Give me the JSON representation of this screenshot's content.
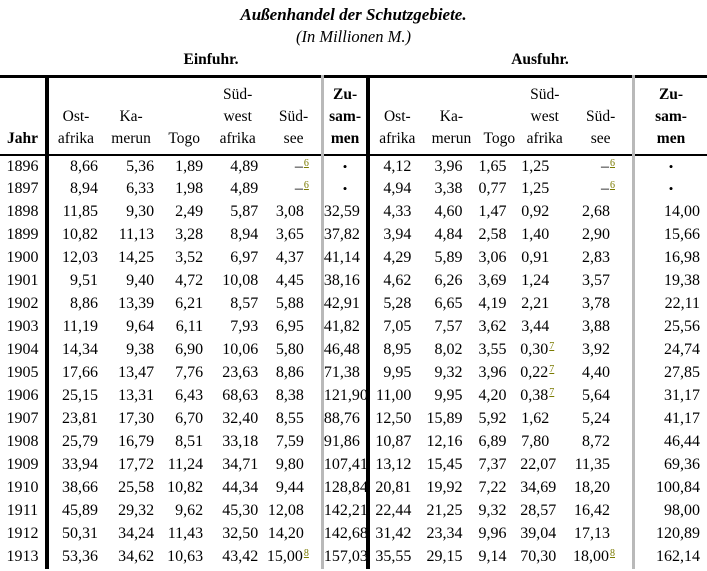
{
  "title": "Außenhandel der Schutzgebiete.",
  "subtitle": "(In Millionen M.)",
  "sections": {
    "einfuhr": "Einfuhr.",
    "ausfuhr": "Ausfuhr."
  },
  "colors": {
    "footnote_link": "#7a7a00",
    "gray_divider": "#b9b9b9",
    "rule_black": "#000000"
  },
  "table": {
    "jahr_label": "Jahr",
    "colonies": [
      {
        "lines": [
          "Ost-",
          "afrika"
        ]
      },
      {
        "lines": [
          "Ka-",
          "merun"
        ]
      },
      {
        "lines": [
          "Togo"
        ]
      },
      {
        "lines": [
          "Süd-",
          "west",
          "afrika"
        ]
      },
      {
        "lines": [
          "Süd-",
          "see"
        ]
      },
      {
        "lines": [
          "Zu-",
          "sam-",
          "men"
        ]
      }
    ],
    "cell_syntax_note": "value^n means footnote marker n rendered as superscript; – is a dash placeholder; • is a dot placeholder",
    "rows": [
      {
        "year": "1896",
        "einfuhr": [
          "8,66",
          "5,36",
          "1,89",
          "4,89",
          "–^6",
          "•"
        ],
        "ausfuhr": [
          "4,12",
          "3,96",
          "1,65",
          "1,25",
          "–^6",
          "•"
        ]
      },
      {
        "year": "1897",
        "einfuhr": [
          "8,94",
          "6,33",
          "1,98",
          "4,89",
          "–^6",
          "•"
        ],
        "ausfuhr": [
          "4,94",
          "3,38",
          "0,77",
          "1,25",
          "–^6",
          "•"
        ]
      },
      {
        "year": "1898",
        "einfuhr": [
          "11,85",
          "9,30",
          "2,49",
          "5,87",
          "3,08",
          "32,59"
        ],
        "ausfuhr": [
          "4,33",
          "4,60",
          "1,47",
          "0,92",
          "2,68",
          "14,00"
        ]
      },
      {
        "year": "1899",
        "einfuhr": [
          "10,82",
          "11,13",
          "3,28",
          "8,94",
          "3,65",
          "37,82"
        ],
        "ausfuhr": [
          "3,94",
          "4,84",
          "2,58",
          "1,40",
          "2,90",
          "15,66"
        ]
      },
      {
        "year": "1900",
        "einfuhr": [
          "12,03",
          "14,25",
          "3,52",
          "6,97",
          "4,37",
          "41,14"
        ],
        "ausfuhr": [
          "4,29",
          "5,89",
          "3,06",
          "0,91",
          "2,83",
          "16,98"
        ]
      },
      {
        "year": "1901",
        "einfuhr": [
          "9,51",
          "9,40",
          "4,72",
          "10,08",
          "4,45",
          "38,16"
        ],
        "ausfuhr": [
          "4,62",
          "6,26",
          "3,69",
          "1,24",
          "3,57",
          "19,38"
        ]
      },
      {
        "year": "1902",
        "einfuhr": [
          "8,86",
          "13,39",
          "6,21",
          "8,57",
          "5,88",
          "42,91"
        ],
        "ausfuhr": [
          "5,28",
          "6,65",
          "4,19",
          "2,21",
          "3,78",
          "22,11"
        ]
      },
      {
        "year": "1903",
        "einfuhr": [
          "11,19",
          "9,64",
          "6,11",
          "7,93",
          "6,95",
          "41,82"
        ],
        "ausfuhr": [
          "7,05",
          "7,57",
          "3,62",
          "3,44",
          "3,88",
          "25,56"
        ]
      },
      {
        "year": "1904",
        "einfuhr": [
          "14,34",
          "9,38",
          "6,90",
          "10,06",
          "5,80",
          "46,48"
        ],
        "ausfuhr": [
          "8,95",
          "8,02",
          "3,55",
          "0,30^7",
          "3,92",
          "24,74"
        ]
      },
      {
        "year": "1905",
        "einfuhr": [
          "17,66",
          "13,47",
          "7,76",
          "23,63",
          "8,86",
          "71,38"
        ],
        "ausfuhr": [
          "9,95",
          "9,32",
          "3,96",
          "0,22^7",
          "4,40",
          "27,85"
        ]
      },
      {
        "year": "1906",
        "einfuhr": [
          "25,15",
          "13,31",
          "6,43",
          "68,63",
          "8,38",
          "121,90"
        ],
        "ausfuhr": [
          "11,00",
          "9,95",
          "4,20",
          "0,38^7",
          "5,64",
          "31,17"
        ]
      },
      {
        "year": "1907",
        "einfuhr": [
          "23,81",
          "17,30",
          "6,70",
          "32,40",
          "8,55",
          "88,76"
        ],
        "ausfuhr": [
          "12,50",
          "15,89",
          "5,92",
          "1,62",
          "5,24",
          "41,17"
        ]
      },
      {
        "year": "1908",
        "einfuhr": [
          "25,79",
          "16,79",
          "8,51",
          "33,18",
          "7,59",
          "91,86"
        ],
        "ausfuhr": [
          "10,87",
          "12,16",
          "6,89",
          "7,80",
          "8,72",
          "46,44"
        ]
      },
      {
        "year": "1909",
        "einfuhr": [
          "33,94",
          "17,72",
          "11,24",
          "34,71",
          "9,80",
          "107,41"
        ],
        "ausfuhr": [
          "13,12",
          "15,45",
          "7,37",
          "22,07",
          "11,35",
          "69,36"
        ]
      },
      {
        "year": "1910",
        "einfuhr": [
          "38,66",
          "25,58",
          "10,82",
          "44,34",
          "9,44",
          "128,84"
        ],
        "ausfuhr": [
          "20,81",
          "19,92",
          "7,22",
          "34,69",
          "18,20",
          "100,84"
        ]
      },
      {
        "year": "1911",
        "einfuhr": [
          "45,89",
          "29,32",
          "9,62",
          "45,30",
          "12,08",
          "142,21"
        ],
        "ausfuhr": [
          "22,44",
          "21,25",
          "9,32",
          "28,57",
          "16,42",
          "98,00"
        ]
      },
      {
        "year": "1912",
        "einfuhr": [
          "50,31",
          "34,24",
          "11,43",
          "32,50",
          "14,20",
          "142,68"
        ],
        "ausfuhr": [
          "31,42",
          "23,34",
          "9,96",
          "39,04",
          "17,13",
          "120,89"
        ]
      },
      {
        "year": "1913",
        "einfuhr": [
          "53,36",
          "34,62",
          "10,63",
          "43,42",
          "15,00^8",
          "157,03"
        ],
        "ausfuhr": [
          "35,55",
          "29,15",
          "9,14",
          "70,30",
          "18,00^8",
          "162,14"
        ]
      }
    ]
  }
}
